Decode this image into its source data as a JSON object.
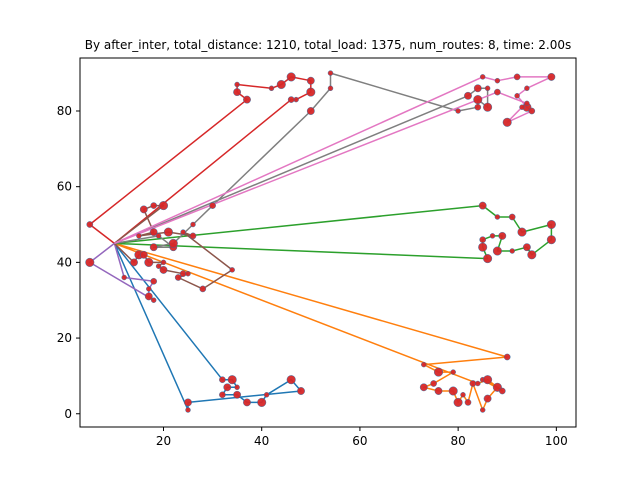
{
  "chart_data": {
    "type": "scatter",
    "title": "By after_inter, total_distance: 1210, total_load: 1375, num_routes: 8, time: 2.00s",
    "xlabel": "",
    "ylabel": "",
    "xlim": [
      3,
      104
    ],
    "ylim": [
      -3.5,
      94
    ],
    "xticks": [
      20,
      40,
      60,
      80,
      100
    ],
    "yticks": [
      0,
      20,
      40,
      60,
      80
    ],
    "grid": false,
    "depot": [
      10,
      45
    ],
    "point_color": "#d62728",
    "routes": [
      {
        "color": "#1f77b4",
        "points": [
          [
            10,
            45
          ],
          [
            32,
            9
          ],
          [
            34,
            9
          ],
          [
            35,
            7
          ],
          [
            33,
            7
          ],
          [
            32,
            5
          ],
          [
            35,
            5
          ],
          [
            37,
            3
          ],
          [
            40,
            3
          ],
          [
            41,
            5
          ],
          [
            46,
            9
          ],
          [
            48,
            6
          ],
          [
            25,
            3
          ],
          [
            25,
            1
          ],
          [
            10,
            45
          ]
        ]
      },
      {
        "color": "#ff7f0e",
        "points": [
          [
            10,
            45
          ],
          [
            90,
            15
          ],
          [
            73,
            13
          ],
          [
            76,
            11
          ],
          [
            79,
            11
          ],
          [
            75,
            8
          ],
          [
            73,
            7
          ],
          [
            76,
            6
          ],
          [
            79,
            6
          ],
          [
            80,
            3
          ],
          [
            81,
            5
          ],
          [
            82,
            3
          ],
          [
            83,
            8
          ],
          [
            85,
            1
          ],
          [
            86,
            4
          ],
          [
            88,
            7
          ],
          [
            85,
            9
          ],
          [
            89,
            6
          ],
          [
            86,
            9
          ],
          [
            84,
            8
          ],
          [
            10,
            45
          ]
        ]
      },
      {
        "color": "#2ca02c",
        "points": [
          [
            10,
            45
          ],
          [
            85,
            55
          ],
          [
            88,
            52
          ],
          [
            91,
            52
          ],
          [
            93,
            48
          ],
          [
            99,
            50
          ],
          [
            99,
            46
          ],
          [
            95,
            42
          ],
          [
            94,
            44
          ],
          [
            91,
            43
          ],
          [
            88,
            43
          ],
          [
            89,
            47
          ],
          [
            87,
            47
          ],
          [
            85,
            46
          ],
          [
            85,
            44
          ],
          [
            86,
            41
          ],
          [
            10,
            45
          ]
        ]
      },
      {
        "color": "#d62728",
        "points": [
          [
            10,
            45
          ],
          [
            5,
            50
          ],
          [
            37,
            83
          ],
          [
            35,
            85
          ],
          [
            35,
            87
          ],
          [
            42,
            86
          ],
          [
            44,
            87
          ],
          [
            46,
            89
          ],
          [
            50,
            88
          ],
          [
            50,
            85
          ],
          [
            47,
            83
          ],
          [
            46,
            83
          ],
          [
            10,
            45
          ]
        ]
      },
      {
        "color": "#9467bd",
        "points": [
          [
            10,
            45
          ],
          [
            5,
            40
          ],
          [
            18,
            30
          ],
          [
            17,
            31
          ],
          [
            17,
            33
          ],
          [
            18,
            35
          ],
          [
            12,
            36
          ],
          [
            10,
            45
          ]
        ]
      },
      {
        "color": "#8c564b",
        "points": [
          [
            10,
            45
          ],
          [
            14,
            40
          ],
          [
            15,
            42
          ],
          [
            16,
            42
          ],
          [
            17,
            40
          ],
          [
            20,
            40
          ],
          [
            19,
            39
          ],
          [
            20,
            38
          ],
          [
            24,
            37
          ],
          [
            25,
            37
          ],
          [
            23,
            36
          ],
          [
            28,
            33
          ],
          [
            34,
            38
          ],
          [
            24,
            48
          ],
          [
            26,
            47
          ],
          [
            21,
            48
          ],
          [
            15,
            47
          ],
          [
            18,
            48
          ],
          [
            16,
            54
          ],
          [
            18,
            55
          ],
          [
            20,
            55
          ],
          [
            10,
            45
          ]
        ]
      },
      {
        "color": "#7f7f7f",
        "points": [
          [
            10,
            45
          ],
          [
            19,
            47
          ],
          [
            22,
            44
          ],
          [
            18,
            44
          ],
          [
            22,
            45
          ],
          [
            26,
            50
          ],
          [
            30,
            55
          ],
          [
            50,
            80
          ],
          [
            54,
            86
          ],
          [
            54,
            90
          ],
          [
            80,
            80
          ],
          [
            84,
            81
          ],
          [
            84,
            83
          ],
          [
            86,
            81
          ],
          [
            86,
            86
          ],
          [
            84,
            86
          ],
          [
            82,
            84
          ],
          [
            10,
            45
          ]
        ]
      },
      {
        "color": "#e377c2",
        "points": [
          [
            10,
            45
          ],
          [
            85,
            89
          ],
          [
            88,
            88
          ],
          [
            92,
            89
          ],
          [
            99,
            89
          ],
          [
            94,
            86
          ],
          [
            92,
            84
          ],
          [
            94,
            81
          ],
          [
            95,
            80
          ],
          [
            90,
            77
          ],
          [
            93,
            81
          ],
          [
            94,
            82
          ],
          [
            88,
            85
          ],
          [
            10,
            45
          ]
        ]
      }
    ]
  }
}
